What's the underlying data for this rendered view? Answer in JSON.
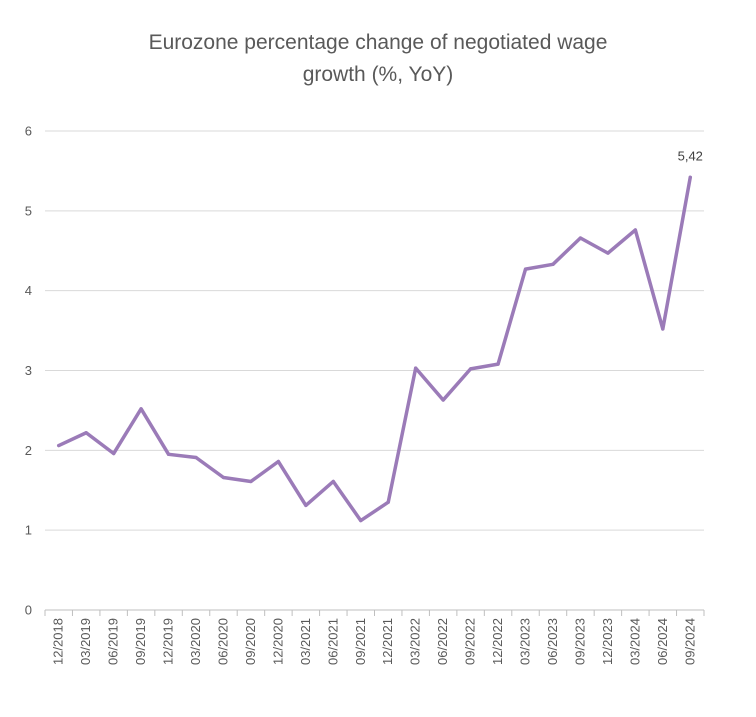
{
  "chart_data": {
    "type": "line",
    "title": [
      "Eurozone percentage change of negotiated wage",
      "growth (%, YoY)"
    ],
    "xlabel": "",
    "ylabel": "",
    "ylim": [
      0,
      6
    ],
    "yticks": [
      "0",
      "1",
      "2",
      "3",
      "4",
      "5",
      "6"
    ],
    "grid": true,
    "legend": "none",
    "categories": [
      "12/2018",
      "03/2019",
      "06/2019",
      "09/2019",
      "12/2019",
      "03/2020",
      "06/2020",
      "09/2020",
      "12/2020",
      "03/2021",
      "06/2021",
      "09/2021",
      "12/2021",
      "03/2022",
      "06/2022",
      "09/2022",
      "12/2022",
      "03/2023",
      "06/2023",
      "09/2023",
      "12/2023",
      "03/2024",
      "06/2024",
      "09/2024"
    ],
    "series": [
      {
        "color": "#9b7bb8",
        "values": [
          2.06,
          2.22,
          1.96,
          2.52,
          1.95,
          1.91,
          1.66,
          1.61,
          1.86,
          1.31,
          1.61,
          1.12,
          1.35,
          3.03,
          2.63,
          3.02,
          3.08,
          4.27,
          4.33,
          4.66,
          4.47,
          4.76,
          3.52,
          5.42
        ]
      }
    ],
    "annotations": [
      {
        "category": "09/2024",
        "text": "5,42"
      }
    ],
    "colors": {
      "grid": "#d9d9d9",
      "axis": "#bfbfbf",
      "text": "#595959"
    }
  }
}
